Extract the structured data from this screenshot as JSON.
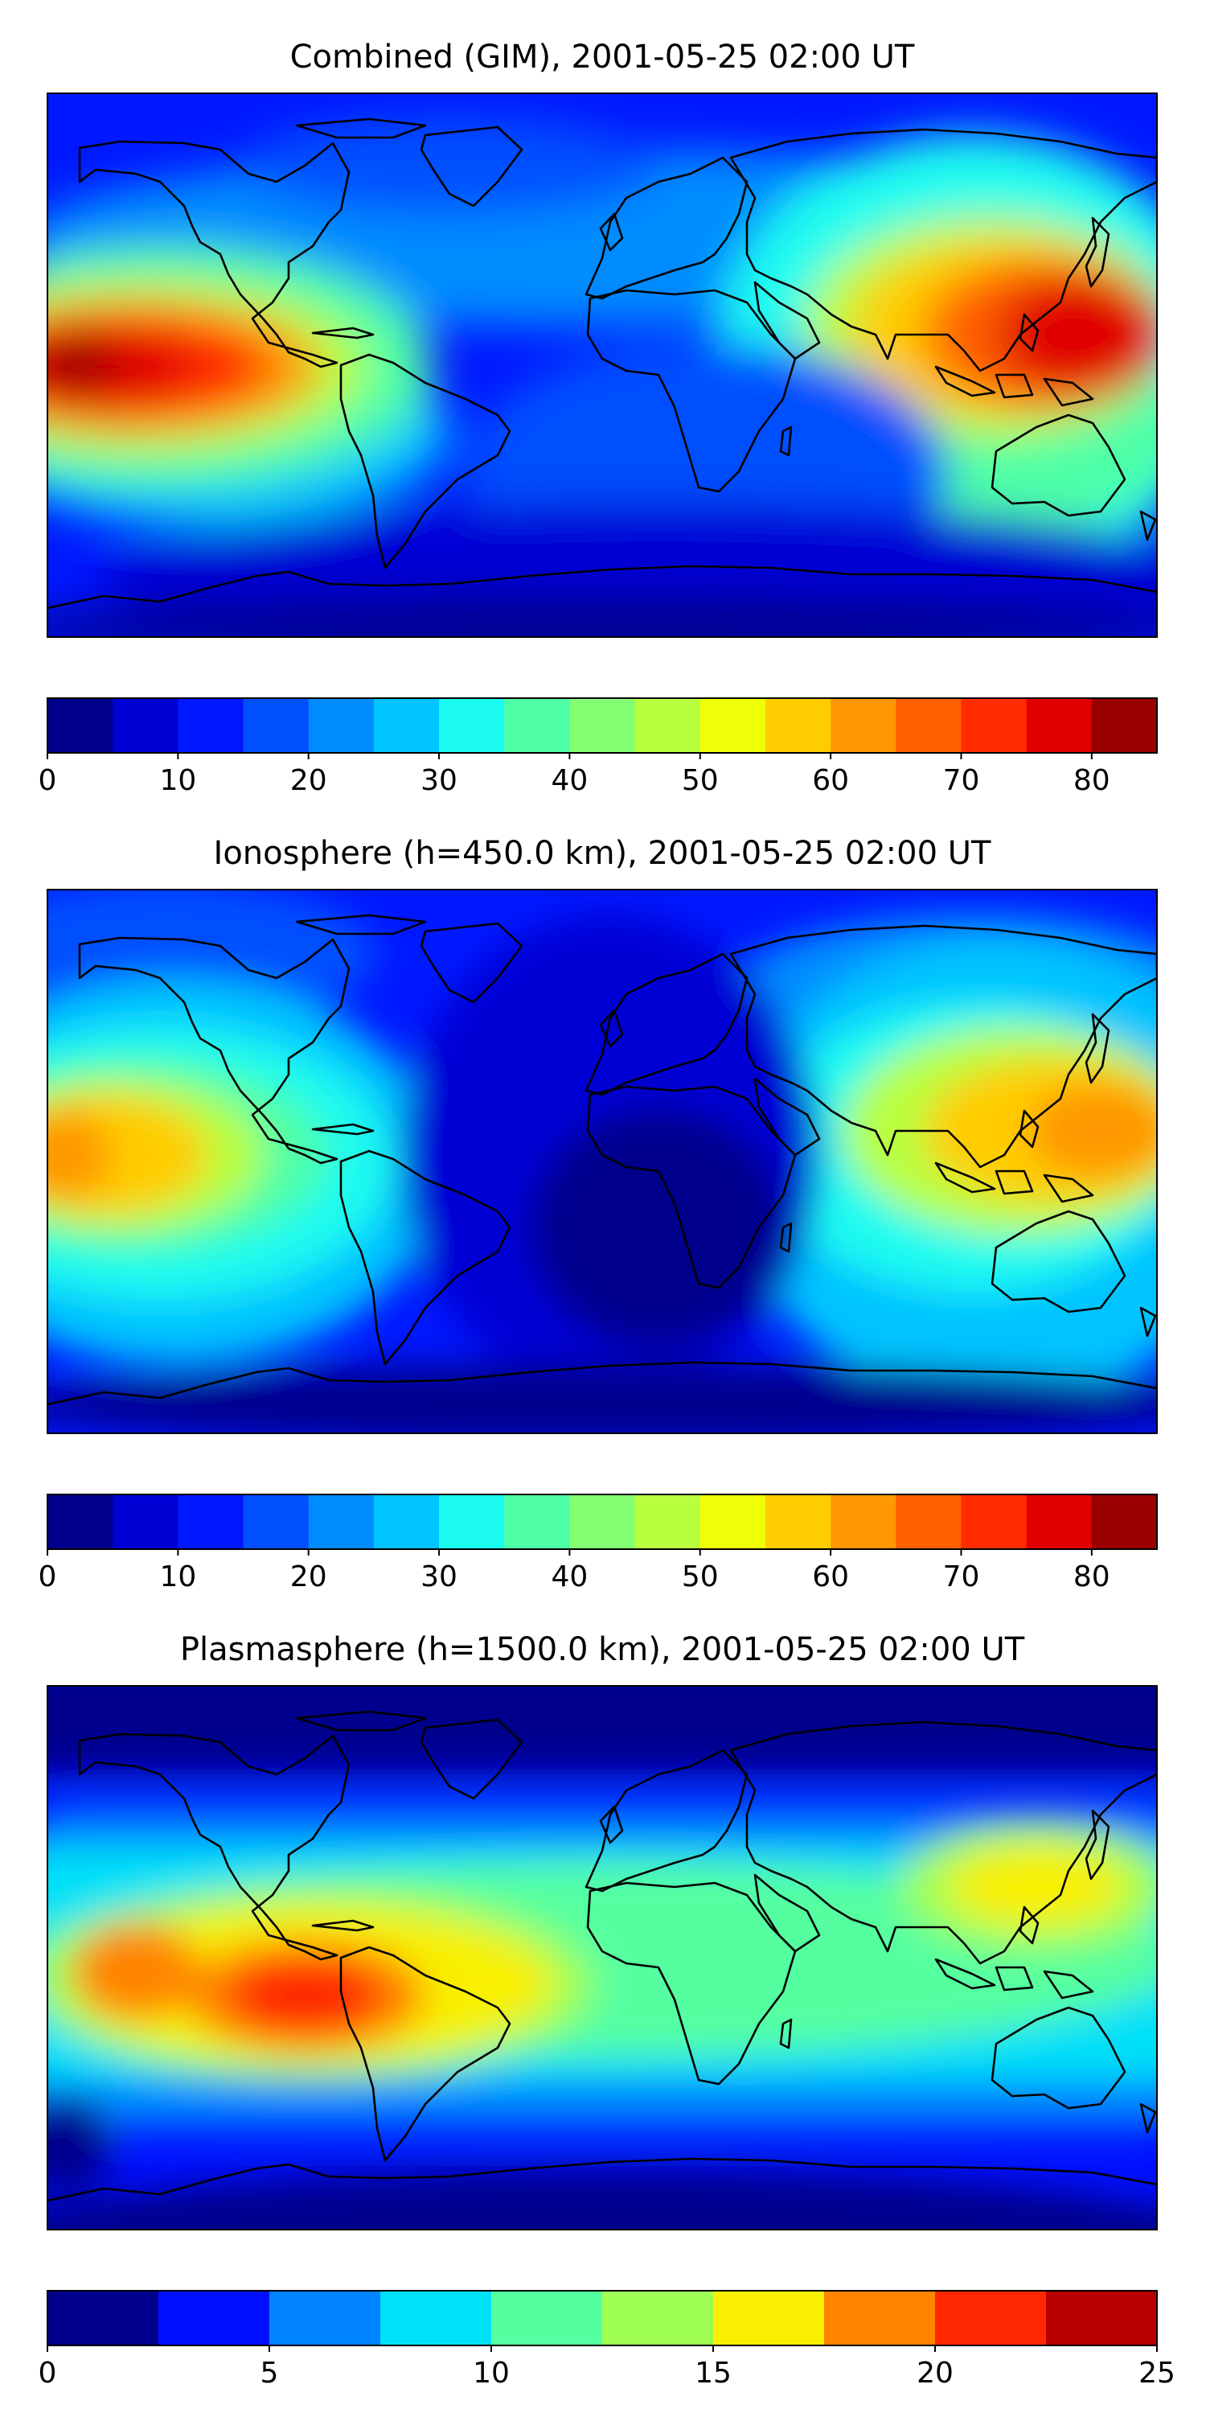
{
  "figure": {
    "panels": [
      {
        "title": "Combined (GIM), 2001-05-25 02:00 UT",
        "colorbar": {
          "ticks": [
            "0",
            "10",
            "20",
            "30",
            "40",
            "50",
            "60",
            "70",
            "80"
          ],
          "levels": [
            0,
            5,
            10,
            15,
            20,
            25,
            30,
            35,
            40,
            45,
            50,
            55,
            60,
            65,
            70,
            75,
            80,
            85
          ]
        }
      },
      {
        "title": "Ionosphere  (h=450.0 km), 2001-05-25 02:00 UT",
        "colorbar": {
          "ticks": [
            "0",
            "10",
            "20",
            "30",
            "40",
            "50",
            "60",
            "70",
            "80"
          ],
          "levels": [
            0,
            5,
            10,
            15,
            20,
            25,
            30,
            35,
            40,
            45,
            50,
            55,
            60,
            65,
            70,
            75,
            80,
            85
          ]
        }
      },
      {
        "title": "Plasmasphere (h=1500.0 km), 2001-05-25 02:00 UT",
        "colorbar": {
          "ticks": [
            "0",
            "5",
            "10",
            "15",
            "20",
            "25"
          ],
          "levels": [
            0,
            2.5,
            5,
            7.5,
            10,
            12.5,
            15,
            17.5,
            20,
            22.5,
            25
          ]
        }
      }
    ],
    "colors": {
      "jet17": [
        "#00008d",
        "#0000d4",
        "#0018ff",
        "#0050ff",
        "#008cff",
        "#00c4ff",
        "#1cfbf0",
        "#4effa7",
        "#84ff73",
        "#b8ff40",
        "#efff08",
        "#ffcc00",
        "#ff9800",
        "#ff6000",
        "#ff2c00",
        "#e00000",
        "#9a0000"
      ],
      "jet10": [
        "#00008d",
        "#0010ff",
        "#0084ff",
        "#00e0f8",
        "#54ffa0",
        "#a0ff54",
        "#f8f000",
        "#ff8400",
        "#ff2800",
        "#b80000"
      ],
      "coastline": "#000000"
    }
  }
}
